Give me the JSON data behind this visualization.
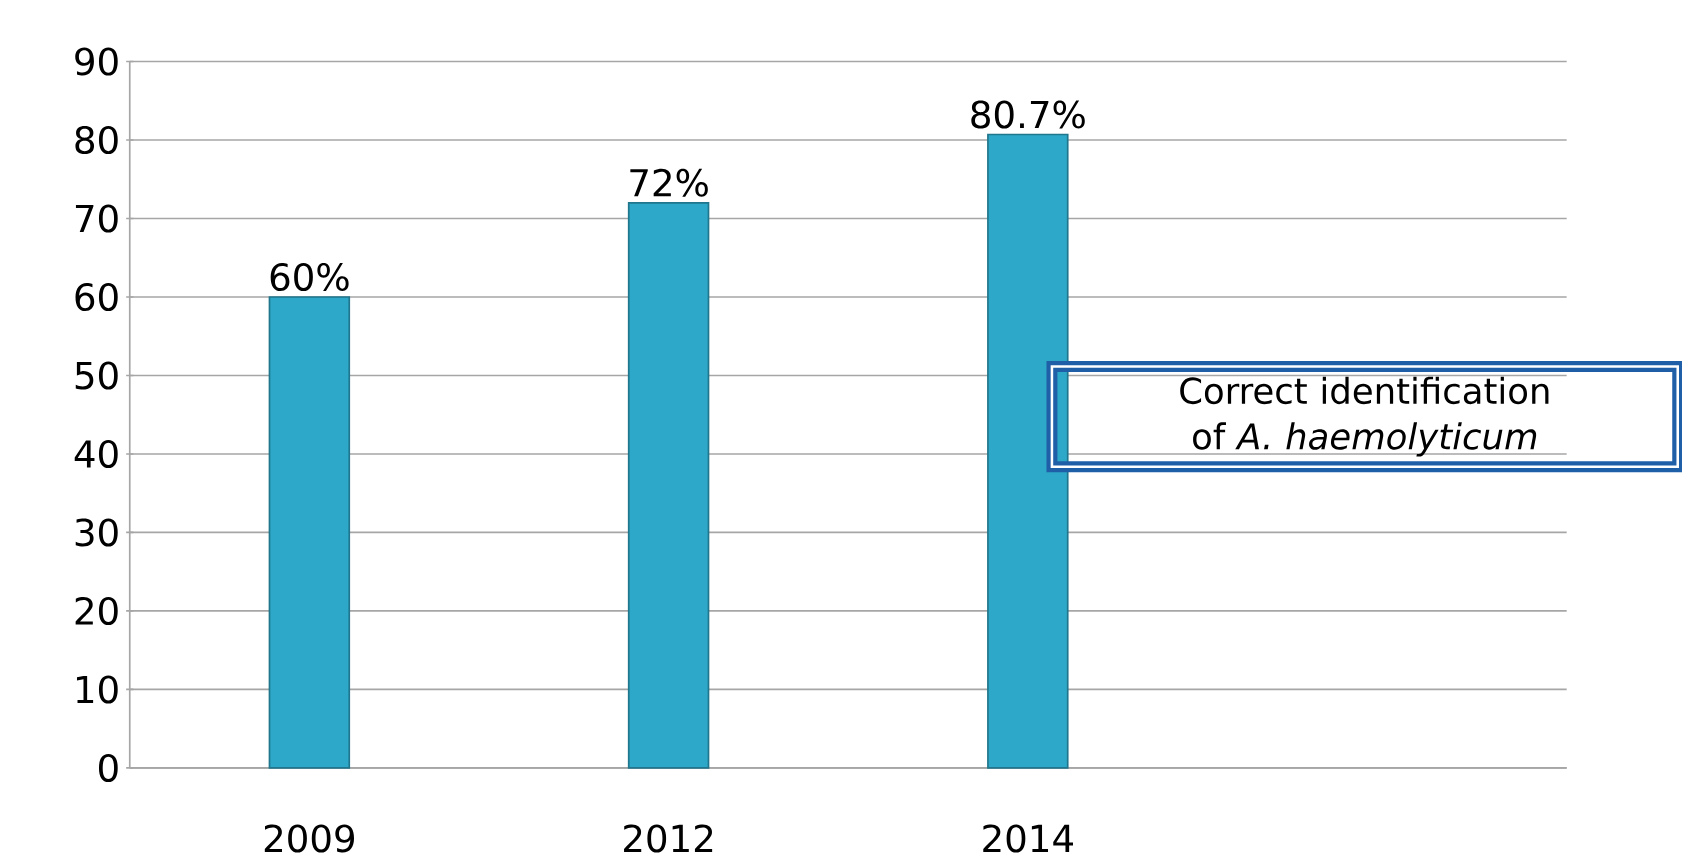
{
  "chart_data": {
    "type": "bar",
    "categories": [
      "2009",
      "2012",
      "2014",
      null
    ],
    "values": [
      60,
      72,
      80.7,
      null
    ],
    "value_labels": [
      "60%",
      "72%",
      "80.7%",
      null
    ],
    "color": "#2ea8c8",
    "ylim": [
      0,
      90
    ],
    "yticks": [
      0,
      10,
      20,
      30,
      40,
      50,
      60,
      70,
      80,
      90
    ],
    "grid": "y",
    "annotations": [
      "Correct identification of *A. haemolyticum*"
    ]
  }
}
